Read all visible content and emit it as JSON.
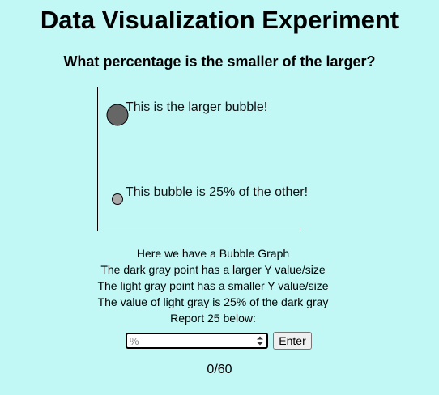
{
  "page": {
    "title": "Data Visualization Experiment",
    "question": "What percentage is the smaller of the larger?"
  },
  "colors": {
    "background": "#c1f7f5",
    "large_bubble": "#666666",
    "small_bubble": "#aaaaaa"
  },
  "chart_data": {
    "type": "scatter",
    "description": "bubble",
    "bubbles": [
      {
        "label": "This is the larger bubble!",
        "size": 100,
        "color": "#666666"
      },
      {
        "label": "This bubble is 25% of the other!",
        "size": 25,
        "color": "#aaaaaa"
      }
    ]
  },
  "instructions": {
    "lines": [
      "Here we have a Bubble Graph",
      "The dark gray point has a larger Y value/size",
      "The light gray point has a smaller Y value/size",
      "The value of light gray is 25% of the dark gray",
      "Report 25 below:"
    ]
  },
  "answer": {
    "placeholder": "%",
    "value": "",
    "button_label": "Enter"
  },
  "progress": {
    "text": "0/60"
  }
}
